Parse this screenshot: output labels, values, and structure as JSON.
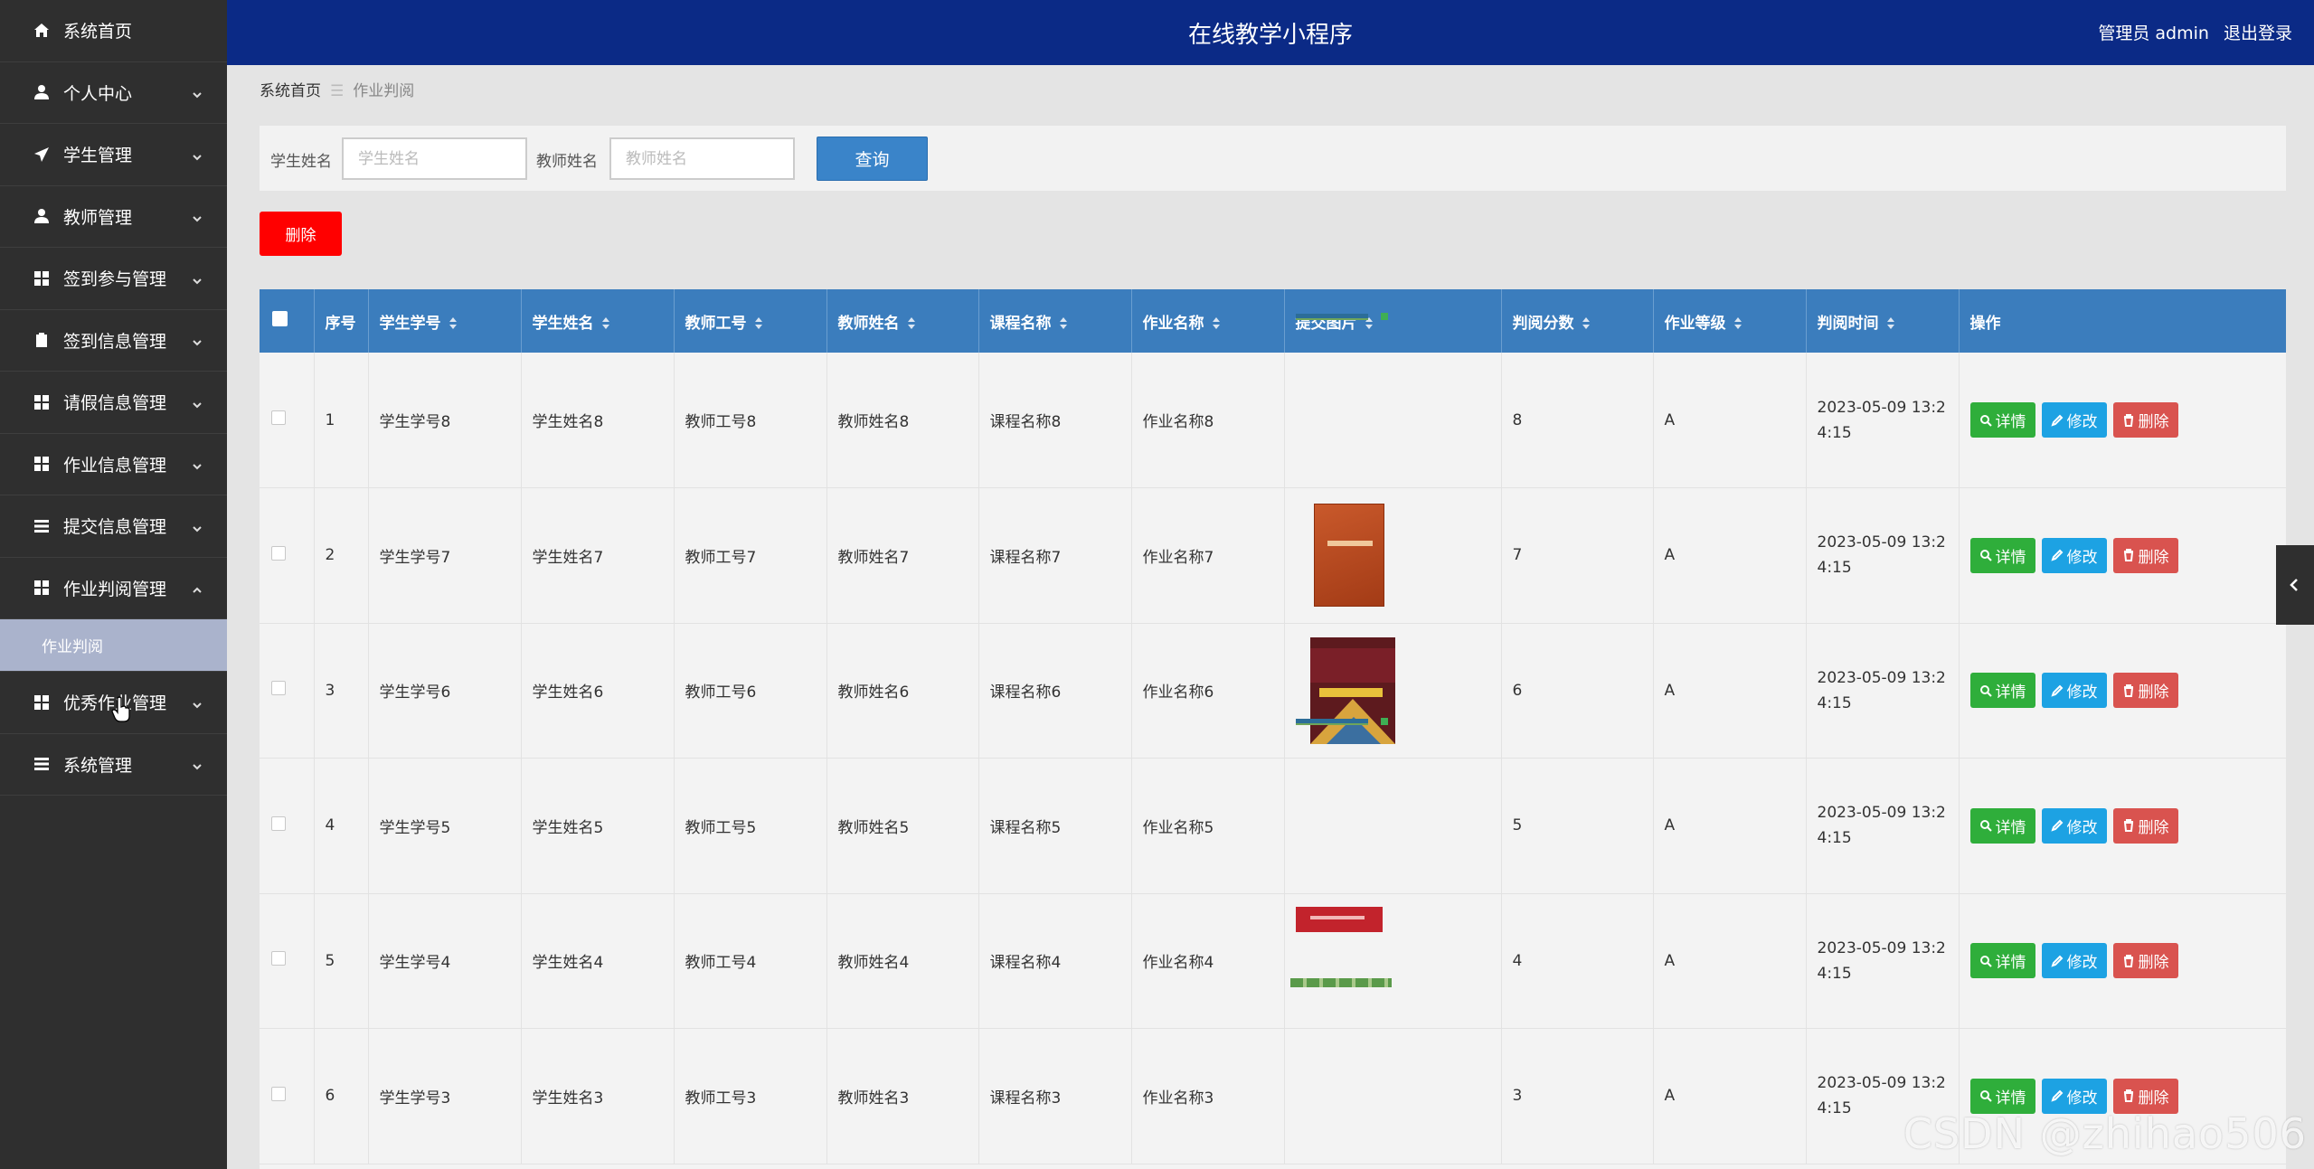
{
  "app": {
    "title": "在线教学小程序",
    "user_label": "管理员 admin",
    "logout_label": "退出登录"
  },
  "sidebar": {
    "items": [
      {
        "label": "系统首页",
        "icon": "home-icon",
        "expandable": false
      },
      {
        "label": "个人中心",
        "icon": "user-icon",
        "expandable": true
      },
      {
        "label": "学生管理",
        "icon": "send-icon",
        "expandable": true
      },
      {
        "label": "教师管理",
        "icon": "user-icon",
        "expandable": true
      },
      {
        "label": "签到参与管理",
        "icon": "grid-icon",
        "expandable": true
      },
      {
        "label": "签到信息管理",
        "icon": "clipboard-icon",
        "expandable": true
      },
      {
        "label": "请假信息管理",
        "icon": "grid-icon",
        "expandable": true
      },
      {
        "label": "作业信息管理",
        "icon": "grid-icon",
        "expandable": true
      },
      {
        "label": "提交信息管理",
        "icon": "list-icon",
        "expandable": true
      },
      {
        "label": "作业判阅管理",
        "icon": "grid-icon",
        "expandable": true,
        "expanded": true
      },
      {
        "label": "优秀作业管理",
        "icon": "grid-icon",
        "expandable": true
      },
      {
        "label": "系统管理",
        "icon": "list-icon",
        "expandable": true
      }
    ],
    "subitem": {
      "label": "作业判阅"
    }
  },
  "breadcrumb": {
    "home": "系统首页",
    "separator": "☰",
    "current": "作业判阅"
  },
  "search": {
    "student_name_label": "学生姓名",
    "student_name_placeholder": "学生姓名",
    "teacher_name_label": "教师姓名",
    "teacher_name_placeholder": "教师姓名",
    "query_label": "查询"
  },
  "toolbar": {
    "delete_label": "删除"
  },
  "table": {
    "columns": [
      "序号",
      "学生学号",
      "学生姓名",
      "教师工号",
      "教师姓名",
      "课程名称",
      "作业名称",
      "提交图片",
      "判阅分数",
      "作业等级",
      "判阅时间",
      "操作"
    ],
    "action_labels": {
      "detail": "详情",
      "edit": "修改",
      "delete": "删除"
    },
    "rows": [
      {
        "index": "1",
        "student_no": "学生学号8",
        "student_name": "学生姓名8",
        "teacher_no": "教师工号8",
        "teacher_name": "教师姓名8",
        "course": "课程名称8",
        "homework": "作业名称8",
        "image": "strip-thumbnail",
        "score": "8",
        "grade": "A",
        "time": "2023-05-09 13:24:15"
      },
      {
        "index": "2",
        "student_no": "学生学号7",
        "student_name": "学生姓名7",
        "teacher_no": "教师工号7",
        "teacher_name": "教师姓名7",
        "course": "课程名称7",
        "homework": "作业名称7",
        "image": "red-book-thumbnail",
        "score": "7",
        "grade": "A",
        "time": "2023-05-09 13:24:15"
      },
      {
        "index": "3",
        "student_no": "学生学号6",
        "student_name": "学生姓名6",
        "teacher_no": "教师工号6",
        "teacher_name": "教师姓名6",
        "course": "课程名称6",
        "homework": "作业名称6",
        "image": "management-book-thumbnail",
        "score": "6",
        "grade": "A",
        "time": "2023-05-09 13:24:15"
      },
      {
        "index": "4",
        "student_no": "学生学号5",
        "student_name": "学生姓名5",
        "teacher_no": "教师工号5",
        "teacher_name": "教师姓名5",
        "course": "课程名称5",
        "homework": "作业名称5",
        "image": "strip-thumbnail",
        "score": "5",
        "grade": "A",
        "time": "2023-05-09 13:24:15"
      },
      {
        "index": "5",
        "student_no": "学生学号4",
        "student_name": "学生姓名4",
        "teacher_no": "教师工号4",
        "teacher_name": "教师姓名4",
        "course": "课程名称4",
        "homework": "作业名称4",
        "image": "red-banner-thumbnail",
        "score": "4",
        "grade": "A",
        "time": "2023-05-09 13:24:15"
      },
      {
        "index": "6",
        "student_no": "学生学号3",
        "student_name": "学生姓名3",
        "teacher_no": "教师工号3",
        "teacher_name": "教师姓名3",
        "course": "课程名称3",
        "homework": "作业名称3",
        "image": "green-strip-thumbnail",
        "score": "3",
        "grade": "A",
        "time": "2023-05-09 13:24:15"
      }
    ]
  },
  "watermark": "CSDN @zhihao506",
  "colors": {
    "header_bg": "#0b2a86",
    "sidebar_bg": "#2f2f2f",
    "table_header_bg": "#3b7dbd",
    "detail_btn": "#2fae3b",
    "edit_btn": "#1da2e3",
    "delete_btn": "#d9534f",
    "bulk_delete_btn": "#ff0000"
  }
}
